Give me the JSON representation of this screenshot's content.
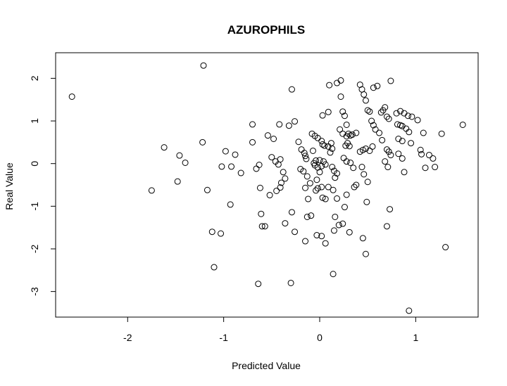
{
  "chart_data": {
    "type": "scatter",
    "title": "AZUROPHILS",
    "xlabel": "Predicted Value",
    "ylabel": "Real Value",
    "xlim": [
      -2.75,
      1.65
    ],
    "ylim": [
      -3.6,
      2.6
    ],
    "x_ticks": [
      -2,
      -1,
      0,
      1
    ],
    "x_tick_labels": [
      "-2",
      "-1",
      "0",
      "1"
    ],
    "y_ticks": [
      -3,
      -2,
      -1,
      0,
      1,
      2
    ],
    "y_tick_labels": [
      "-3",
      "-2",
      "-1",
      "0",
      "1",
      "2"
    ],
    "grid": false,
    "legend": "none",
    "marker": "open-circle",
    "colors": {
      "points": "#000000",
      "axes": "#000000",
      "background": "#ffffff"
    },
    "points": [
      [
        -2.58,
        1.57
      ],
      [
        -1.21,
        2.3
      ],
      [
        -1.22,
        0.5
      ],
      [
        -1.75,
        -0.63
      ],
      [
        -1.62,
        0.38
      ],
      [
        -1.46,
        0.19
      ],
      [
        -1.4,
        0.02
      ],
      [
        -1.48,
        -0.42
      ],
      [
        -1.17,
        -0.62
      ],
      [
        -1.12,
        -1.6
      ],
      [
        -1.03,
        -1.64
      ],
      [
        -1.1,
        -2.43
      ],
      [
        -0.98,
        0.29
      ],
      [
        -0.88,
        0.21
      ],
      [
        -1.02,
        -0.07
      ],
      [
        -0.92,
        -0.07
      ],
      [
        -0.82,
        -0.22
      ],
      [
        -0.93,
        -0.96
      ],
      [
        -0.7,
        0.92
      ],
      [
        -0.7,
        0.5
      ],
      [
        -0.66,
        -0.12
      ],
      [
        -0.63,
        -0.03
      ],
      [
        -0.62,
        -0.57
      ],
      [
        -0.61,
        -1.18
      ],
      [
        -0.6,
        -1.47
      ],
      [
        -0.57,
        -1.47
      ],
      [
        -0.64,
        -2.82
      ],
      [
        -0.54,
        0.66
      ],
      [
        -0.48,
        0.58
      ],
      [
        -0.42,
        0.92
      ],
      [
        -0.5,
        0.15
      ],
      [
        -0.46,
        0.05
      ],
      [
        -0.43,
        -0.02
      ],
      [
        -0.41,
        0.1
      ],
      [
        -0.38,
        -0.2
      ],
      [
        -0.4,
        -0.45
      ],
      [
        -0.36,
        -0.35
      ],
      [
        -0.45,
        -0.64
      ],
      [
        -0.52,
        -0.74
      ],
      [
        -0.41,
        -0.56
      ],
      [
        -0.32,
        0.89
      ],
      [
        -0.29,
        1.74
      ],
      [
        -0.29,
        -1.14
      ],
      [
        -0.36,
        -1.4
      ],
      [
        -0.26,
        -1.6
      ],
      [
        -0.3,
        -2.8
      ],
      [
        -0.26,
        0.99
      ],
      [
        -0.22,
        0.51
      ],
      [
        -0.19,
        0.33
      ],
      [
        -0.16,
        0.25
      ],
      [
        -0.15,
        0.18
      ],
      [
        -0.14,
        0.11
      ],
      [
        -0.2,
        -0.13
      ],
      [
        -0.17,
        -0.18
      ],
      [
        -0.13,
        -0.3
      ],
      [
        -0.15,
        -0.57
      ],
      [
        -0.1,
        -0.46
      ],
      [
        -0.12,
        -0.83
      ],
      [
        -0.13,
        -1.25
      ],
      [
        -0.09,
        -1.22
      ],
      [
        -0.15,
        -1.82
      ],
      [
        -0.08,
        0.7
      ],
      [
        -0.05,
        0.65
      ],
      [
        -0.02,
        0.6
      ],
      [
        -0.07,
        0.3
      ],
      [
        -0.04,
        0.07
      ],
      [
        -0.05,
        -0.04
      ],
      [
        -0.02,
        -0.09
      ],
      [
        -0.03,
        -0.38
      ],
      [
        -0.04,
        -0.63
      ],
      [
        -0.02,
        -0.58
      ],
      [
        0.02,
        0.53
      ],
      [
        0.03,
        0.45
      ],
      [
        0.05,
        0.42
      ],
      [
        0.02,
        -0.06
      ],
      [
        0.0,
        -0.2
      ],
      [
        0.02,
        -0.55
      ],
      [
        0.03,
        -0.8
      ],
      [
        0.06,
        -0.83
      ],
      [
        -0.03,
        -1.68
      ],
      [
        0.02,
        -1.7
      ],
      [
        0.06,
        -1.87
      ],
      [
        0.03,
        1.13
      ],
      [
        0.09,
        1.21
      ],
      [
        0.1,
        1.84
      ],
      [
        0.12,
        0.48
      ],
      [
        0.13,
        0.35
      ],
      [
        0.11,
        0.26
      ],
      [
        0.09,
        0.4
      ],
      [
        0.13,
        -0.08
      ],
      [
        0.15,
        -0.17
      ],
      [
        0.18,
        -0.23
      ],
      [
        0.16,
        -0.33
      ],
      [
        0.09,
        -0.55
      ],
      [
        0.14,
        -0.62
      ],
      [
        0.18,
        -0.82
      ],
      [
        0.16,
        -1.25
      ],
      [
        0.2,
        -1.44
      ],
      [
        0.15,
        -1.57
      ],
      [
        0.14,
        -2.59
      ],
      [
        0.18,
        1.89
      ],
      [
        0.22,
        1.95
      ],
      [
        0.22,
        1.57
      ],
      [
        0.24,
        1.22
      ],
      [
        0.26,
        1.12
      ],
      [
        0.28,
        0.91
      ],
      [
        0.21,
        0.8
      ],
      [
        0.24,
        0.7
      ],
      [
        0.28,
        0.64
      ],
      [
        0.3,
        0.7
      ],
      [
        0.32,
        0.66
      ],
      [
        0.34,
        0.68
      ],
      [
        0.38,
        0.72
      ],
      [
        0.27,
        0.42
      ],
      [
        0.29,
        0.48
      ],
      [
        0.31,
        0.41
      ],
      [
        0.25,
        0.13
      ],
      [
        0.28,
        0.05
      ],
      [
        0.32,
        0.02
      ],
      [
        0.35,
        -0.1
      ],
      [
        0.38,
        -0.5
      ],
      [
        0.36,
        -0.55
      ],
      [
        0.28,
        -0.73
      ],
      [
        0.26,
        -1.02
      ],
      [
        0.31,
        -1.61
      ],
      [
        0.24,
        -1.41
      ],
      [
        0.42,
        1.85
      ],
      [
        0.44,
        1.74
      ],
      [
        0.46,
        1.62
      ],
      [
        0.48,
        1.48
      ],
      [
        0.5,
        1.25
      ],
      [
        0.52,
        1.22
      ],
      [
        0.56,
        1.78
      ],
      [
        0.6,
        1.82
      ],
      [
        0.54,
        1.0
      ],
      [
        0.56,
        0.9
      ],
      [
        0.58,
        0.8
      ],
      [
        0.42,
        0.28
      ],
      [
        0.45,
        0.32
      ],
      [
        0.48,
        0.35
      ],
      [
        0.52,
        0.3
      ],
      [
        0.55,
        0.4
      ],
      [
        0.44,
        -0.08
      ],
      [
        0.46,
        -0.25
      ],
      [
        0.5,
        -0.43
      ],
      [
        0.49,
        -0.9
      ],
      [
        0.45,
        -1.75
      ],
      [
        0.48,
        -2.12
      ],
      [
        0.64,
        1.2
      ],
      [
        0.66,
        1.25
      ],
      [
        0.68,
        1.32
      ],
      [
        0.7,
        1.1
      ],
      [
        0.72,
        1.05
      ],
      [
        0.74,
        1.94
      ],
      [
        0.62,
        0.72
      ],
      [
        0.65,
        0.55
      ],
      [
        0.7,
        0.33
      ],
      [
        0.72,
        0.28
      ],
      [
        0.74,
        0.2
      ],
      [
        0.68,
        0.05
      ],
      [
        0.71,
        -0.08
      ],
      [
        0.73,
        -1.07
      ],
      [
        0.7,
        -1.47
      ],
      [
        0.8,
        1.18
      ],
      [
        0.84,
        1.23
      ],
      [
        0.88,
        1.18
      ],
      [
        0.92,
        1.12
      ],
      [
        0.96,
        1.1
      ],
      [
        0.81,
        0.92
      ],
      [
        0.84,
        0.9
      ],
      [
        0.86,
        0.88
      ],
      [
        0.9,
        0.82
      ],
      [
        0.93,
        0.74
      ],
      [
        0.82,
        0.58
      ],
      [
        0.86,
        0.53
      ],
      [
        0.95,
        0.48
      ],
      [
        0.82,
        0.23
      ],
      [
        0.86,
        0.12
      ],
      [
        0.88,
        -0.2
      ],
      [
        0.93,
        -3.45
      ],
      [
        1.02,
        1.02
      ],
      [
        1.05,
        0.32
      ],
      [
        1.06,
        0.22
      ],
      [
        1.08,
        0.72
      ],
      [
        1.1,
        -0.1
      ],
      [
        1.14,
        0.2
      ],
      [
        1.18,
        0.12
      ],
      [
        1.2,
        -0.08
      ],
      [
        1.27,
        0.7
      ],
      [
        1.31,
        -1.96
      ],
      [
        1.49,
        0.91
      ],
      [
        0.04,
        0.05
      ],
      [
        0.06,
        -0.02
      ],
      [
        0.0,
        0.08
      ],
      [
        -0.06,
        0.01
      ]
    ]
  }
}
